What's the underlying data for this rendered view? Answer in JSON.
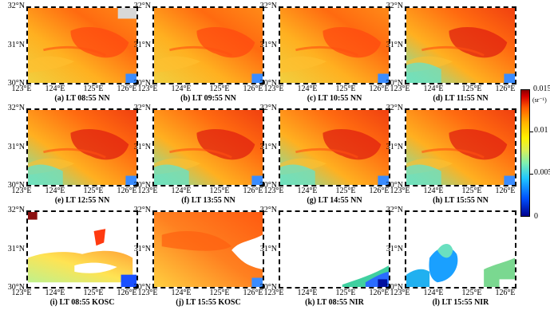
{
  "panels": [
    {
      "caption": "(a) LT 08:55 NN",
      "variant": "full"
    },
    {
      "caption": "(b) LT 09:55 NN",
      "variant": "full"
    },
    {
      "caption": "(c) LT 10:55 NN",
      "variant": "full"
    },
    {
      "caption": "(d) LT 11:55 NN",
      "variant": "full"
    },
    {
      "caption": "(e) LT 12:55 NN",
      "variant": "full"
    },
    {
      "caption": "(f) LT 13:55 NN",
      "variant": "full"
    },
    {
      "caption": "(g) LT 14:55 NN",
      "variant": "full"
    },
    {
      "caption": "(h) LT 15:55 NN",
      "variant": "full"
    },
    {
      "caption": "(i) LT 08:55 KOSC",
      "variant": "kosc-am"
    },
    {
      "caption": "(j) LT 15:55 KOSC",
      "variant": "kosc-pm"
    },
    {
      "caption": "(k) LT 08:55 NIR",
      "variant": "nir-am"
    },
    {
      "caption": "(l) LT 15:55 NIR",
      "variant": "nir-pm"
    }
  ],
  "axes": {
    "lat_labels": [
      "32°N",
      "31°N",
      "30°N"
    ],
    "lon_labels": [
      "123°E",
      "124°E",
      "125°E",
      "126°E"
    ]
  },
  "colorbar": {
    "top_label": "0.015",
    "unit": "(sr⁻¹)",
    "ticks": [
      "0.01",
      "0.005",
      "0"
    ],
    "range": [
      0,
      0.015
    ]
  }
}
